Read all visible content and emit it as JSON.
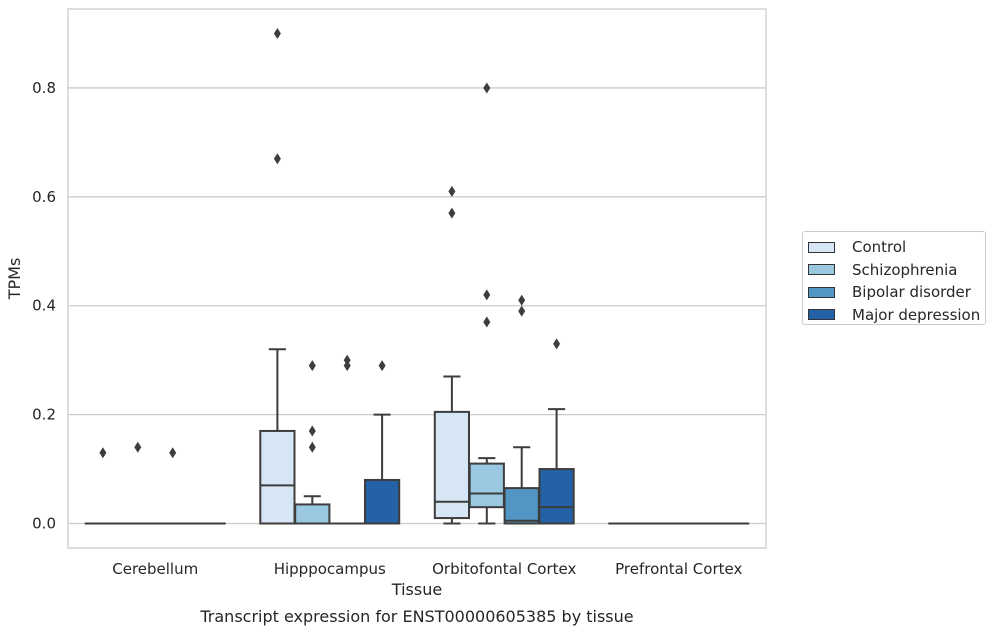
{
  "chart_data": {
    "type": "box",
    "title": "Transcript expression for ENST00000605385 by tissue",
    "xlabel": "Tissue",
    "ylabel": "TPMs",
    "ylim": [
      -0.045,
      0.945
    ],
    "yticks": [
      "0.0",
      "0.2",
      "0.4",
      "0.6",
      "0.8"
    ],
    "ytick_values": [
      0.0,
      0.2,
      0.4,
      0.6,
      0.8
    ],
    "grid": "horizontal",
    "legend_position": "right",
    "categories": [
      "Cerebellum",
      "Hipppocampus",
      "Orbitofontal Cortex",
      "Prefrontal Cortex"
    ],
    "series": [
      {
        "name": "Control",
        "color": "#d6e6f4",
        "boxes": [
          {
            "q1": 0,
            "median": 0,
            "q3": 0,
            "whisker_low": 0,
            "whisker_high": 0,
            "outliers": [
              0.13
            ]
          },
          {
            "q1": 0,
            "median": 0.07,
            "q3": 0.17,
            "whisker_low": 0,
            "whisker_high": 0.32,
            "outliers": [
              0.67,
              0.9
            ]
          },
          {
            "q1": 0.01,
            "median": 0.04,
            "q3": 0.205,
            "whisker_low": 0,
            "whisker_high": 0.27,
            "outliers": [
              0.57,
              0.61
            ]
          },
          {
            "q1": 0,
            "median": 0,
            "q3": 0,
            "whisker_low": 0,
            "whisker_high": 0,
            "outliers": []
          }
        ]
      },
      {
        "name": "Schizophrenia",
        "color": "#9ac8e0",
        "boxes": [
          {
            "q1": 0,
            "median": 0,
            "q3": 0,
            "whisker_low": 0,
            "whisker_high": 0,
            "outliers": [
              0.14
            ]
          },
          {
            "q1": 0,
            "median": 0,
            "q3": 0.035,
            "whisker_low": 0,
            "whisker_high": 0.05,
            "outliers": [
              0.14,
              0.17,
              0.29
            ]
          },
          {
            "q1": 0.03,
            "median": 0.055,
            "q3": 0.11,
            "whisker_low": 0,
            "whisker_high": 0.12,
            "outliers": [
              0.37,
              0.42,
              0.8
            ]
          },
          {
            "q1": 0,
            "median": 0,
            "q3": 0,
            "whisker_low": 0,
            "whisker_high": 0,
            "outliers": []
          }
        ]
      },
      {
        "name": "Bipolar disorder",
        "color": "#5196c4",
        "boxes": [
          {
            "q1": 0,
            "median": 0,
            "q3": 0,
            "whisker_low": 0,
            "whisker_high": 0,
            "outliers": [
              0.13
            ]
          },
          {
            "q1": 0,
            "median": 0,
            "q3": 0,
            "whisker_low": 0,
            "whisker_high": 0,
            "outliers": [
              0.29,
              0.3
            ]
          },
          {
            "q1": 0,
            "median": 0.005,
            "q3": 0.065,
            "whisker_low": 0,
            "whisker_high": 0.14,
            "outliers": [
              0.39,
              0.41
            ]
          },
          {
            "q1": 0,
            "median": 0,
            "q3": 0,
            "whisker_low": 0,
            "whisker_high": 0,
            "outliers": []
          }
        ]
      },
      {
        "name": "Major depression",
        "color": "#2362a6",
        "boxes": [
          {
            "q1": 0,
            "median": 0,
            "q3": 0,
            "whisker_low": 0,
            "whisker_high": 0,
            "outliers": []
          },
          {
            "q1": 0,
            "median": 0,
            "q3": 0.08,
            "whisker_low": 0,
            "whisker_high": 0.2,
            "outliers": [
              0.29
            ]
          },
          {
            "q1": 0,
            "median": 0.03,
            "q3": 0.1,
            "whisker_low": 0,
            "whisker_high": 0.21,
            "outliers": [
              0.33
            ]
          },
          {
            "q1": 0,
            "median": 0,
            "q3": 0,
            "whisker_low": 0,
            "whisker_high": 0,
            "outliers": []
          }
        ]
      }
    ]
  }
}
